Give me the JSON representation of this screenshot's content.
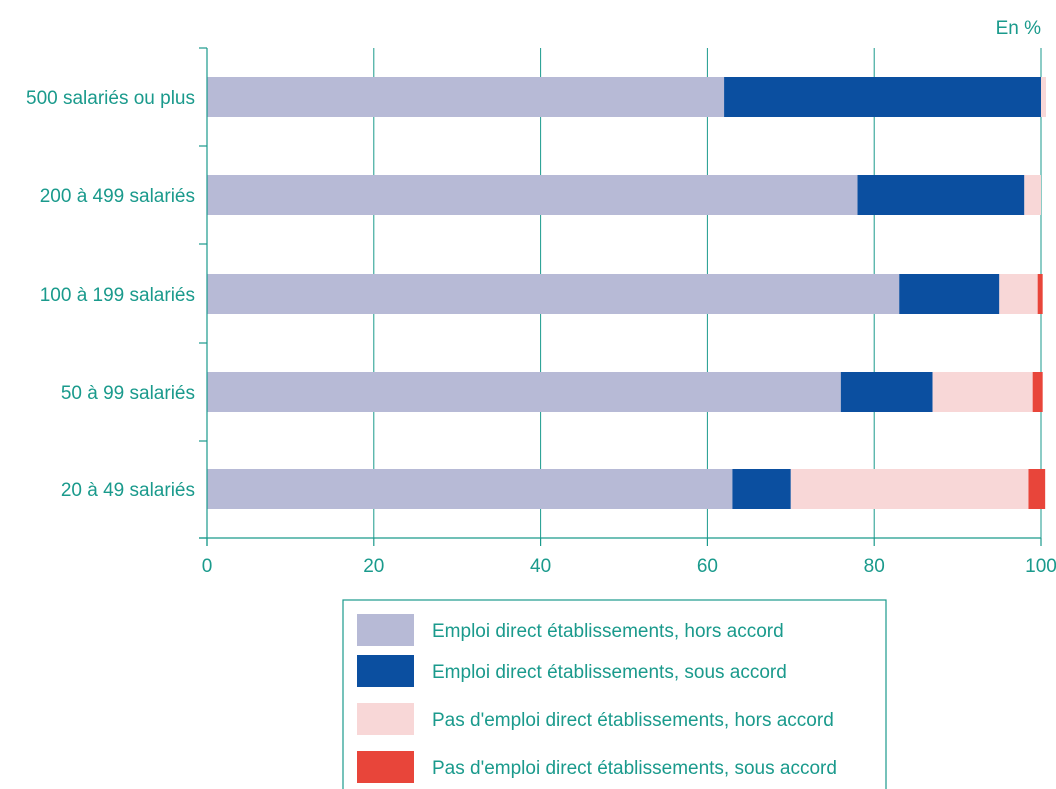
{
  "chart_data": {
    "type": "bar",
    "orientation": "horizontal",
    "stacked": true,
    "unit_label": "En %",
    "categories": [
      "500 salariés ou plus",
      "200 à 499 salariés",
      "100 à 199 salariés",
      "50 à 99 salariés",
      "20 à 49 salariés"
    ],
    "series": [
      {
        "name": "Emploi direct établissements, hors accord",
        "color": "#b7bad6",
        "values": [
          62,
          78,
          83,
          76,
          63
        ]
      },
      {
        "name": "Emploi direct établissements, sous accord",
        "color": "#0b4fa0",
        "values": [
          38,
          20,
          12,
          11,
          7
        ]
      },
      {
        "name": "Pas d'emploi direct établissements, hors accord",
        "color": "#f8d7d7",
        "values": [
          0.6,
          2,
          4.6,
          12,
          28.5
        ]
      },
      {
        "name": "Pas d'emploi direct établissements, sous accord",
        "color": "#e8453a",
        "values": [
          0,
          0,
          0.6,
          1.2,
          2
        ]
      }
    ],
    "xlim": [
      0,
      100
    ],
    "xticks": [
      "0",
      "20",
      "40",
      "60",
      "80",
      "100"
    ],
    "grid": true,
    "legend_position": "bottom",
    "axis_color": "#1a9a8c"
  }
}
